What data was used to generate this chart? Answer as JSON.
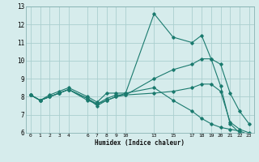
{
  "xlabel": "Humidex (Indice chaleur)",
  "bg_color": "#d6ecec",
  "grid_color": "#aacfcf",
  "line_color": "#1a7a6e",
  "series": [
    {
      "x": [
        0,
        1,
        2,
        3,
        4,
        6,
        7,
        8,
        9,
        10,
        13,
        15,
        17,
        18,
        19,
        20,
        21,
        22,
        23
      ],
      "y": [
        8.1,
        7.8,
        8.1,
        8.3,
        8.5,
        8.0,
        7.7,
        8.2,
        8.2,
        8.2,
        12.6,
        11.3,
        11.0,
        11.4,
        10.1,
        8.6,
        6.5,
        6.0,
        5.9
      ]
    },
    {
      "x": [
        0,
        1,
        2,
        3,
        4,
        6,
        7,
        8,
        9,
        10,
        13,
        15,
        17,
        18,
        19,
        20,
        21,
        22,
        23
      ],
      "y": [
        8.1,
        7.8,
        8.0,
        8.2,
        8.4,
        7.9,
        7.6,
        7.9,
        8.1,
        8.1,
        8.2,
        8.3,
        8.5,
        8.7,
        8.7,
        8.3,
        6.6,
        6.2,
        6.0
      ]
    },
    {
      "x": [
        0,
        1,
        2,
        3,
        4,
        6,
        7,
        8,
        9,
        10,
        13,
        15,
        17,
        18,
        19,
        20,
        21,
        22,
        23
      ],
      "y": [
        8.1,
        7.8,
        8.0,
        8.2,
        8.4,
        7.9,
        7.5,
        7.8,
        8.0,
        8.1,
        9.0,
        9.5,
        9.8,
        10.1,
        10.1,
        9.8,
        8.2,
        7.2,
        6.5
      ]
    },
    {
      "x": [
        0,
        1,
        2,
        3,
        4,
        6,
        7,
        8,
        9,
        10,
        13,
        15,
        17,
        18,
        19,
        20,
        21,
        22,
        23
      ],
      "y": [
        8.1,
        7.8,
        8.0,
        8.2,
        8.4,
        7.8,
        7.6,
        7.8,
        8.0,
        8.2,
        8.5,
        7.8,
        7.2,
        6.8,
        6.5,
        6.3,
        6.2,
        6.1,
        5.9
      ]
    }
  ],
  "xticks": [
    0,
    1,
    2,
    3,
    4,
    6,
    7,
    8,
    9,
    10,
    13,
    15,
    17,
    18,
    19,
    20,
    21,
    22,
    23
  ],
  "xtick_labels": [
    "0",
    "1",
    "2",
    "3",
    "4",
    "6",
    "7",
    "8",
    "9",
    "10",
    "13",
    "15",
    "17",
    "18",
    "19",
    "20",
    "21",
    "22",
    "23"
  ],
  "ylim": [
    6,
    13
  ],
  "yticks": [
    6,
    7,
    8,
    9,
    10,
    11,
    12,
    13
  ],
  "xlim": [
    -0.5,
    23.5
  ],
  "figw": 3.2,
  "figh": 2.0,
  "dpi": 100
}
